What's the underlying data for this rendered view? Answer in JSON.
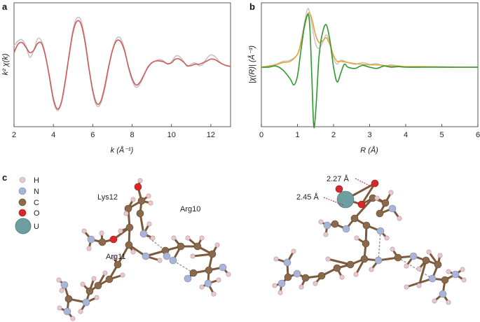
{
  "panels": {
    "a": "a",
    "b": "b",
    "c": "c"
  },
  "colors": {
    "exp": "#c4c4c4",
    "fit_a": "#d05a5a",
    "mag_fit": "#e8a13a",
    "imag_fit": "#2c9a2c",
    "carbon": "#8a6a4a",
    "nitrogen": "#a9b4d6",
    "hydrogen": "#e8c7cf",
    "oxygen": "#d62828",
    "uranium": "#6e9ea0",
    "bond": "#7d5a3c"
  },
  "chart_data": [
    {
      "panel": "a",
      "type": "line",
      "xlabel": "k (Å⁻¹)",
      "ylabel": "k² χ(k)",
      "xlim": [
        2,
        13
      ],
      "xticks": [
        "2",
        "4",
        "6",
        "8",
        "10",
        "12"
      ],
      "yticks_shown": false,
      "series": [
        {
          "x": [
            2.0,
            2.2,
            2.4,
            2.6,
            2.8,
            3.0,
            3.2,
            3.4,
            3.6,
            3.8,
            4.0,
            4.2,
            4.4,
            4.6,
            4.8,
            5.0,
            5.2,
            5.4,
            5.6,
            5.8,
            6.0,
            6.2,
            6.4,
            6.6,
            6.8,
            7.0,
            7.2,
            7.4,
            7.6,
            7.8,
            8.0,
            8.2,
            8.4,
            8.6,
            8.8,
            9.0,
            9.2,
            9.4,
            9.6,
            9.8,
            10.0,
            10.2,
            10.4,
            10.6,
            10.8,
            11.0,
            11.2,
            11.4,
            11.6,
            11.8,
            12.0,
            12.2,
            12.4,
            12.6,
            12.8,
            13.0
          ],
          "y": [
            0.45,
            0.55,
            0.58,
            0.45,
            0.2,
            0.35,
            0.6,
            0.55,
            0.25,
            -0.25,
            -0.75,
            -0.95,
            -0.8,
            -0.35,
            0.25,
            0.8,
            1.05,
            1.0,
            0.6,
            0.0,
            -0.55,
            -0.85,
            -0.8,
            -0.5,
            -0.05,
            0.35,
            0.6,
            0.62,
            0.4,
            0.0,
            -0.3,
            -0.45,
            -0.38,
            -0.2,
            0.0,
            0.08,
            0.12,
            0.15,
            0.12,
            0.05,
            0.1,
            0.22,
            0.22,
            0.12,
            0.0,
            0.05,
            0.08,
            0.02,
            0.05,
            0.18,
            0.25,
            0.22,
            0.12,
            0.05,
            0.02,
            0.0
          ]
        },
        {
          "x": [
            2.0,
            2.2,
            2.4,
            2.6,
            2.8,
            3.0,
            3.2,
            3.4,
            3.6,
            3.8,
            4.0,
            4.2,
            4.4,
            4.6,
            4.8,
            5.0,
            5.2,
            5.4,
            5.6,
            5.8,
            6.0,
            6.2,
            6.4,
            6.6,
            6.8,
            7.0,
            7.2,
            7.4,
            7.6,
            7.8,
            8.0,
            8.2,
            8.4,
            8.6,
            8.8,
            9.0,
            9.2,
            9.4,
            9.6,
            9.8,
            10.0,
            10.2,
            10.4,
            10.6,
            10.8,
            11.0,
            11.2,
            11.4,
            11.6,
            11.8,
            12.0,
            12.2,
            12.4,
            12.6,
            12.8,
            13.0
          ],
          "y": [
            0.3,
            0.48,
            0.52,
            0.42,
            0.3,
            0.35,
            0.5,
            0.5,
            0.22,
            -0.22,
            -0.7,
            -0.92,
            -0.78,
            -0.32,
            0.25,
            0.75,
            0.98,
            0.92,
            0.55,
            -0.02,
            -0.52,
            -0.8,
            -0.76,
            -0.45,
            -0.02,
            0.35,
            0.55,
            0.55,
            0.36,
            0.02,
            -0.26,
            -0.4,
            -0.34,
            -0.18,
            -0.02,
            0.08,
            0.12,
            0.12,
            0.1,
            0.06,
            0.08,
            0.16,
            0.16,
            0.1,
            0.02,
            0.02,
            0.05,
            0.05,
            0.08,
            0.12,
            0.16,
            0.15,
            0.1,
            0.05,
            0.02,
            0.0
          ]
        }
      ]
    },
    {
      "panel": "b",
      "type": "line",
      "xlabel": "R (Å)",
      "ylabel": "|χ(R)| (Å⁻³)",
      "xlim": [
        0,
        6
      ],
      "xticks": [
        "0",
        "1",
        "2",
        "3",
        "4",
        "5",
        "6"
      ],
      "yticks_shown": false,
      "series": [
        {
          "x": [
            0.0,
            0.2,
            0.4,
            0.6,
            0.8,
            1.0,
            1.1,
            1.2,
            1.3,
            1.4,
            1.5,
            1.6,
            1.7,
            1.8,
            1.9,
            2.0,
            2.1,
            2.2,
            2.4,
            2.6,
            2.8,
            3.0,
            3.2,
            3.4,
            3.6,
            3.8,
            4.0,
            4.5,
            5.0,
            5.5,
            6.0
          ],
          "y": [
            0.0,
            0.02,
            0.05,
            0.1,
            0.12,
            0.22,
            0.45,
            0.78,
            1.0,
            0.72,
            0.4,
            0.32,
            0.42,
            0.55,
            0.4,
            0.15,
            0.05,
            0.12,
            0.08,
            0.05,
            0.08,
            0.05,
            0.06,
            0.02,
            0.04,
            0.02,
            0.01,
            0.01,
            0.01,
            0.0,
            0.0
          ]
        },
        {
          "x": [
            0.0,
            0.2,
            0.4,
            0.6,
            0.8,
            1.0,
            1.1,
            1.2,
            1.3,
            1.4,
            1.5,
            1.6,
            1.7,
            1.8,
            1.9,
            2.0,
            2.1,
            2.2,
            2.4,
            2.6,
            2.8,
            3.0,
            3.2,
            3.4,
            3.6,
            3.8,
            4.0,
            4.5,
            5.0,
            5.5,
            6.0
          ],
          "y": [
            0.0,
            0.02,
            0.04,
            0.08,
            0.1,
            0.22,
            0.42,
            0.7,
            0.92,
            0.82,
            0.55,
            0.42,
            0.45,
            0.5,
            0.38,
            0.2,
            0.1,
            0.1,
            0.08,
            0.06,
            0.05,
            0.04,
            0.04,
            0.03,
            0.02,
            0.02,
            0.01,
            0.01,
            0.0,
            0.0,
            0.0
          ]
        },
        {
          "x": [
            0.0,
            0.2,
            0.4,
            0.6,
            0.8,
            0.9,
            1.0,
            1.1,
            1.2,
            1.3,
            1.35,
            1.4,
            1.45,
            1.5,
            1.55,
            1.6,
            1.7,
            1.8,
            1.9,
            2.0,
            2.1,
            2.2,
            2.3,
            2.4,
            2.6,
            2.8,
            3.0,
            3.2,
            3.4,
            3.6,
            3.8,
            4.0,
            4.5,
            5.0,
            5.5,
            6.0
          ],
          "y": [
            0.0,
            0.0,
            0.02,
            -0.05,
            -0.2,
            -0.3,
            -0.15,
            0.3,
            0.72,
            0.9,
            0.6,
            -0.2,
            -1.0,
            -0.8,
            -0.3,
            0.2,
            0.6,
            0.72,
            0.45,
            0.0,
            -0.25,
            -0.1,
            0.05,
            0.0,
            -0.02,
            0.03,
            0.0,
            -0.02,
            0.02,
            0.0,
            0.01,
            0.0,
            0.0,
            0.0,
            0.0,
            0.0
          ]
        }
      ]
    }
  ],
  "molecule": {
    "legend": [
      "H",
      "N",
      "C",
      "O",
      "U"
    ],
    "left_labels": [
      "Lys12",
      "Arg10",
      "Arg11"
    ],
    "right_labels": [
      "2.27 Å",
      "2.45 Å"
    ]
  }
}
